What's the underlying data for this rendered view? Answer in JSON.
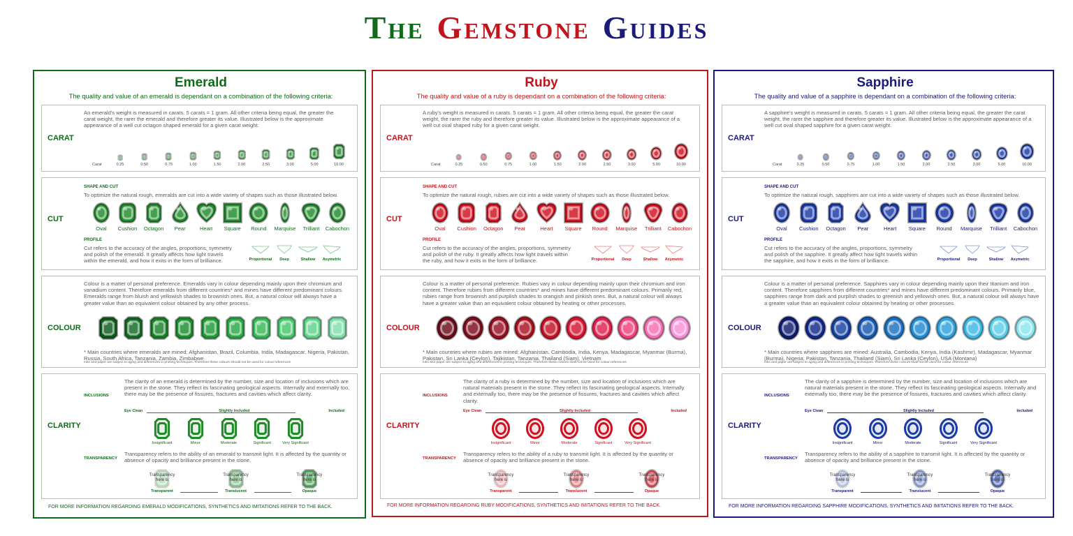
{
  "title": [
    {
      "text": "The",
      "color": "#0f6b1a"
    },
    {
      "text": "Gemstone",
      "color": "#c0151c"
    },
    {
      "text": "Guides",
      "color": "#1a1a7a"
    }
  ],
  "panels": [
    {
      "name": "Emerald",
      "color": "#0f6b1a",
      "gem_color": "#1f8a2a",
      "subtitle": "The quality and value of an emerald is dependant on a combination of the following criteria:",
      "carat": {
        "label": "CARAT",
        "text": "An emerald's weight is measured in carats. 5 carats = 1 gram. All other criteria being equal, the greater the carat weight, the rarer the emerald and therefore greater its value. Illustrated below is the approximate appearance of a well cut octagon shaped emerald for a given carat weight.",
        "axis_label": "Carat",
        "weights": [
          "0.25",
          "0.50",
          "0.75",
          "1.00",
          "1.50",
          "2.00",
          "2.50",
          "3.00",
          "5.00",
          "10.00"
        ]
      },
      "cut": {
        "label": "CUT",
        "heading": "SHAPE AND CUT",
        "text": "To optimize the natural rough, emeralds are cut into a wide variety of shapes such as those illustrated below.",
        "shapes": [
          "Oval",
          "Cushion",
          "Octagon",
          "Pear",
          "Heart",
          "Square",
          "Round",
          "Marquise",
          "Trilliant",
          "Cabochon"
        ],
        "profile_heading": "PROFILE",
        "profile_text": "Cut refers to the accuracy of the angles, proportions, symmetry and polish of the emerald. It greatly affects how light travels within the emerald, and how it exits in the form of brilliance.",
        "profiles": [
          "Proportional",
          "Deep",
          "Shallow",
          "Asymetric"
        ]
      },
      "colour": {
        "label": "COLOUR",
        "text": "Colour is a matter of personal preference. Emeralds vary in colour depending mainly upon their chromium and vanadium content. Therefore emeralds from different countries* and mines have different predominant colours. Emeralds range from bluish and yellowish shades to brownish ones. But, a natural colour will always have a greater value than an equivalent colour obtained by any other process.",
        "shades": [
          "#0d5a1c",
          "#126b22",
          "#168026",
          "#1a8e2c",
          "#1f9a35",
          "#27a844",
          "#35b955",
          "#45c66a",
          "#5ed38a",
          "#7fdfaa"
        ],
        "note": "* Main countries where emeralds are mined:  Afghanistan, Brazil, Columbia, India, Madagascar, Nigeria, Pakistan, Russia, South Africa, Tanzania, Zambia, Zimbabwe",
        "disclaimer": "Inks and paper are subject to aging and differences in printing techniques. Therefore these colours should not be used for colour references"
      },
      "clarity": {
        "label": "CLARITY",
        "inclusions_label": "INCLUSIONS",
        "inclusions_text": "The clarity of an emerald is determined by the number, size and location of inclusions which are present in the stone. They reflect its fascinating geological aspects. Internally and externally too, there may be the presence of fissures, fractures and cavities which affect clarity.",
        "scale": [
          "Eye Clean",
          "Slightly Included",
          "Included"
        ],
        "grades": [
          "Insignificant",
          "Minor",
          "Moderate",
          "Significant",
          "Very Significant"
        ],
        "transparency_label": "TRANSPARENCY",
        "transparency_text": "Transparency refers to the ability of an emerald to transmit light. It is affected by the quantity or absence of opacity and brilliance present in the stone.",
        "placeholder": "Transparency here is",
        "levels": [
          "Transparent",
          "Translucent",
          "Opaque"
        ]
      },
      "footer": "FOR MORE INFORMATION REGARDING EMERALD MODIFICATIONS, SYNTHETICS AND IMITATIONS REFER TO THE BACK."
    },
    {
      "name": "Ruby",
      "color": "#c0151c",
      "gem_color": "#d0101e",
      "subtitle": "The quality and value of a ruby is dependant on a combination of the following criteria:",
      "carat": {
        "label": "CARAT",
        "text": "A ruby's weight is measured in carats. 5 carats = 1 gram. All other criteria being equal, the greater the carat weight, the rarer the ruby and therefore greater its value. Illustrated below is the approximate appearance of a well cut oval shaped ruby for a given carat weight.",
        "axis_label": "Carat",
        "weights": [
          "0.25",
          "0.50",
          "0.75",
          "1.00",
          "1.50",
          "2.00",
          "2.50",
          "3.00",
          "5.00",
          "10.00"
        ]
      },
      "cut": {
        "label": "CUT",
        "heading": "SHAPE AND CUT",
        "text": "To optimize the natural rough, rubies are cut into a wide variety of shapes such as those illustrated below.",
        "shapes": [
          "Oval",
          "Cushion",
          "Octagon",
          "Pear",
          "Heart",
          "Square",
          "Round",
          "Marquise",
          "Trilliant",
          "Cabochon"
        ],
        "profile_heading": "PROFILE",
        "profile_text": "Cut refers to the accuracy of the angles, proportions, symmetry and polish of the ruby. It greatly affects how light travels within the ruby, and how it exits in the form of brilliance.",
        "profiles": [
          "Proportional",
          "Deep",
          "Shallow",
          "Asymetric"
        ]
      },
      "colour": {
        "label": "COLOUR",
        "text": "Colour is a matter of personal preference. Rubies vary in colour depending mainly upon their chromium and iron content. Therefore rubies from different countries* and mines have different predominant colours. Primarily red, rubies range from brownish and purplish shades to orangish and pinkish ones. But, a natural colour will always have a greater value than an equivalent colour obtained by heating or other processes.",
        "shades": [
          "#6b0a1a",
          "#7d0c1c",
          "#950f20",
          "#a81020",
          "#c01224",
          "#d51530",
          "#e02050",
          "#f0407a",
          "#f570b0",
          "#f890d8"
        ],
        "note": "* Main countries where rubies are mined:  Afghanistan, Cambodia, India, Kenya, Madagascar, Myanmar (Burma), Pakistan, Sri Lanka (Ceylon), Tajikistan, Tanzania, Thailand (Siam), Vietnam",
        "disclaimer": "Inks and paper are subject to aging and differences in printing techniques. Therefore these colours shall not be used for colour references"
      },
      "clarity": {
        "label": "CLARITY",
        "inclusions_label": "INCLUSIONS",
        "inclusions_text": "The clarity of a ruby is determined by the number, size and location of inclusions which are natural materials present in the stone. They reflect its fascinating geological aspects. Internally and externally too, there may be the presence of fissures, fractures and cavities which affect clarity.",
        "scale": [
          "Eye Clean",
          "Slightly Included",
          "Included"
        ],
        "grades": [
          "Insignificant",
          "Minor",
          "Moderate",
          "Significant",
          "Very Significant"
        ],
        "transparency_label": "TRANSPARENCY",
        "transparency_text": "Transparency refers to the ability of a ruby to transmit light. It is affected by the quantity or absence of opacity and brilliance present in the stone.",
        "placeholder": "Transparency here is",
        "levels": [
          "Transparent",
          "Translucent",
          "Opaque"
        ]
      },
      "footer": "FOR MORE INFORMATION REGARDING RUBY MODIFICATIONS, SYNTHETICS AND IMITATIONS REFER TO THE BACK."
    },
    {
      "name": "Sapphire",
      "color": "#1a1a7a",
      "gem_color": "#1a3aa8",
      "subtitle": "The quality and value of a sapphire is dependant on a combination of the following criteria:",
      "carat": {
        "label": "CARAT",
        "text": "A sapphire's weight is measured in carats. 5 carats = 1 gram. All other criteria being equal, the greater the carat weight, the rarer the sapphire and therefore greater its value. Illustrated below is the approximate appearance of a well cut oval shaped sapphire for a given carat weight.",
        "axis_label": "Carat",
        "weights": [
          "0.25",
          "0.50",
          "0.75",
          "1.00",
          "1.50",
          "2.00",
          "2.50",
          "3.00",
          "5.00",
          "10.00"
        ]
      },
      "cut": {
        "label": "CUT",
        "heading": "SHAPE AND CUT",
        "text": "To optimize the natural rough, sapphires are cut into a wide variety of shapes such as those illustrated below.",
        "shapes": [
          "Oval",
          "Cushion",
          "Octagon",
          "Pear",
          "Heart",
          "Square",
          "Round",
          "Marquise",
          "Trilliant",
          "Cabochon"
        ],
        "profile_heading": "PROFILE",
        "profile_text": "Cut refers to the accuracy of the angles, proportions, symmetry and polish of the sapphire. It greatly affect how light travels within the sapphire, and how it exits in the form of brilliance.",
        "profiles": [
          "Proportional",
          "Deep",
          "Shallow",
          "Asymetric"
        ]
      },
      "colour": {
        "label": "COLOUR",
        "text": "Colour is a matter of personal preference. Sapphires vary in colour depending mainly upon their titanium and iron content. Therefore sapphires from different countries* and mines have different predominant colours. Primarily blue, sapphires range from dark and purplish shades to greenish and yellowish ones. But, a natural colour will always have a greater value than an equivalent colour obtained by heating or other processes.",
        "shades": [
          "#0c1c6e",
          "#10288a",
          "#14409e",
          "#1657b0",
          "#1a6fc0",
          "#2089d0",
          "#2aa0dc",
          "#3bb7e6",
          "#5acde8",
          "#8ae6f0"
        ],
        "note": "* Main countries where sapphires are mined:  Australia, Cambodia, Kenya, India (Kashmir), Madagascar, Myanmar (Burma), Nigeria, Pakistan, Tanzania, Thailand (Siam), Sri Lanka (Ceylon),  USA (Montana)",
        "disclaimer": "Inks and paper are subject to aging and differences in printing techniques. Therefore these colours shall not be used for colour references"
      },
      "clarity": {
        "label": "CLARITY",
        "inclusions_label": "INCLUSIONS",
        "inclusions_text": "The clarity of a sapphire is determined by the number, size and location of inclusions which are natural materials present in the stone. They reflect its fascinating geological aspects. Internally and externally too, there may be the presence of fissures, fractures and cavities which affect clarity.",
        "scale": [
          "Eye Clean",
          "Slightly Included",
          "Included"
        ],
        "grades": [
          "Insignificant",
          "Minor",
          "Moderate",
          "Significant",
          "Very Significant"
        ],
        "transparency_label": "TRANSPARENCY",
        "transparency_text": "Transparency refers to the ability of a sapphire to transmit light. It is affected by the quantity or absence of opacity and brilliance present in the stone.",
        "placeholder": "Transparency here is",
        "levels": [
          "Transparent",
          "Translucent",
          "Opaque"
        ]
      },
      "footer": "FOR MORE INFORMATION REGARDING SAPPHIRE MODIFICATIONS, SYNTHETICS AND IMITATIONS REFER TO THE BACK."
    }
  ]
}
